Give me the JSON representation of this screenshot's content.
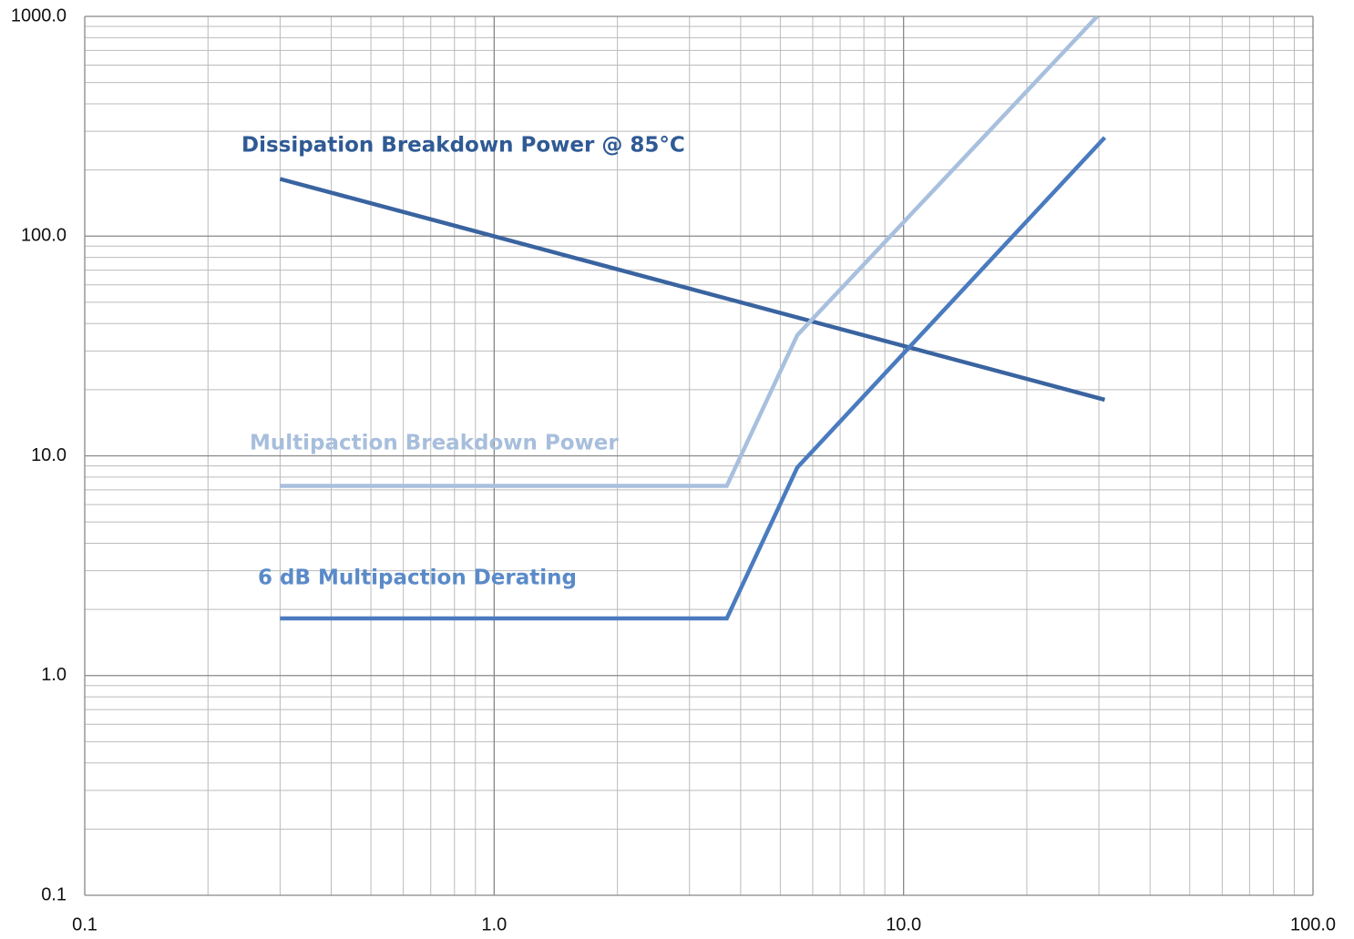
{
  "chart_data": {
    "type": "line",
    "log_x": true,
    "log_y": true,
    "grid": true,
    "minor_grid": true,
    "xlim": [
      0.1,
      100
    ],
    "ylim": [
      0.1,
      1000
    ],
    "xticks": [
      {
        "value": 0.1,
        "label": "0.1"
      },
      {
        "value": 1,
        "label": "1.0"
      },
      {
        "value": 10,
        "label": "10.0"
      },
      {
        "value": 100,
        "label": "100.0"
      }
    ],
    "yticks": [
      {
        "value": 0.1,
        "label": "0.1"
      },
      {
        "value": 1,
        "label": "1.0"
      },
      {
        "value": 10,
        "label": "10.0"
      },
      {
        "value": 100,
        "label": "100.0"
      },
      {
        "value": 1000,
        "label": "1000.0"
      }
    ],
    "series": [
      {
        "name": "Dissipation Breakdown Power @ 85°C",
        "color": "#3a64a0",
        "x": [
          0.3,
          31
        ],
        "values": [
          182,
          18
        ]
      },
      {
        "name": "Multipaction Breakdown Power",
        "color": "#a8c0de",
        "x": [
          0.3,
          3.7,
          5.5,
          29.7
        ],
        "values": [
          7.3,
          7.3,
          35.4,
          1000
        ]
      },
      {
        "name": "6 dB Multipaction Derating",
        "color": "#4a7bbf",
        "x": [
          0.3,
          3.7,
          5.5,
          31
        ],
        "values": [
          1.82,
          1.82,
          8.85,
          281
        ]
      }
    ],
    "fill_color": "#a9c4e4"
  }
}
